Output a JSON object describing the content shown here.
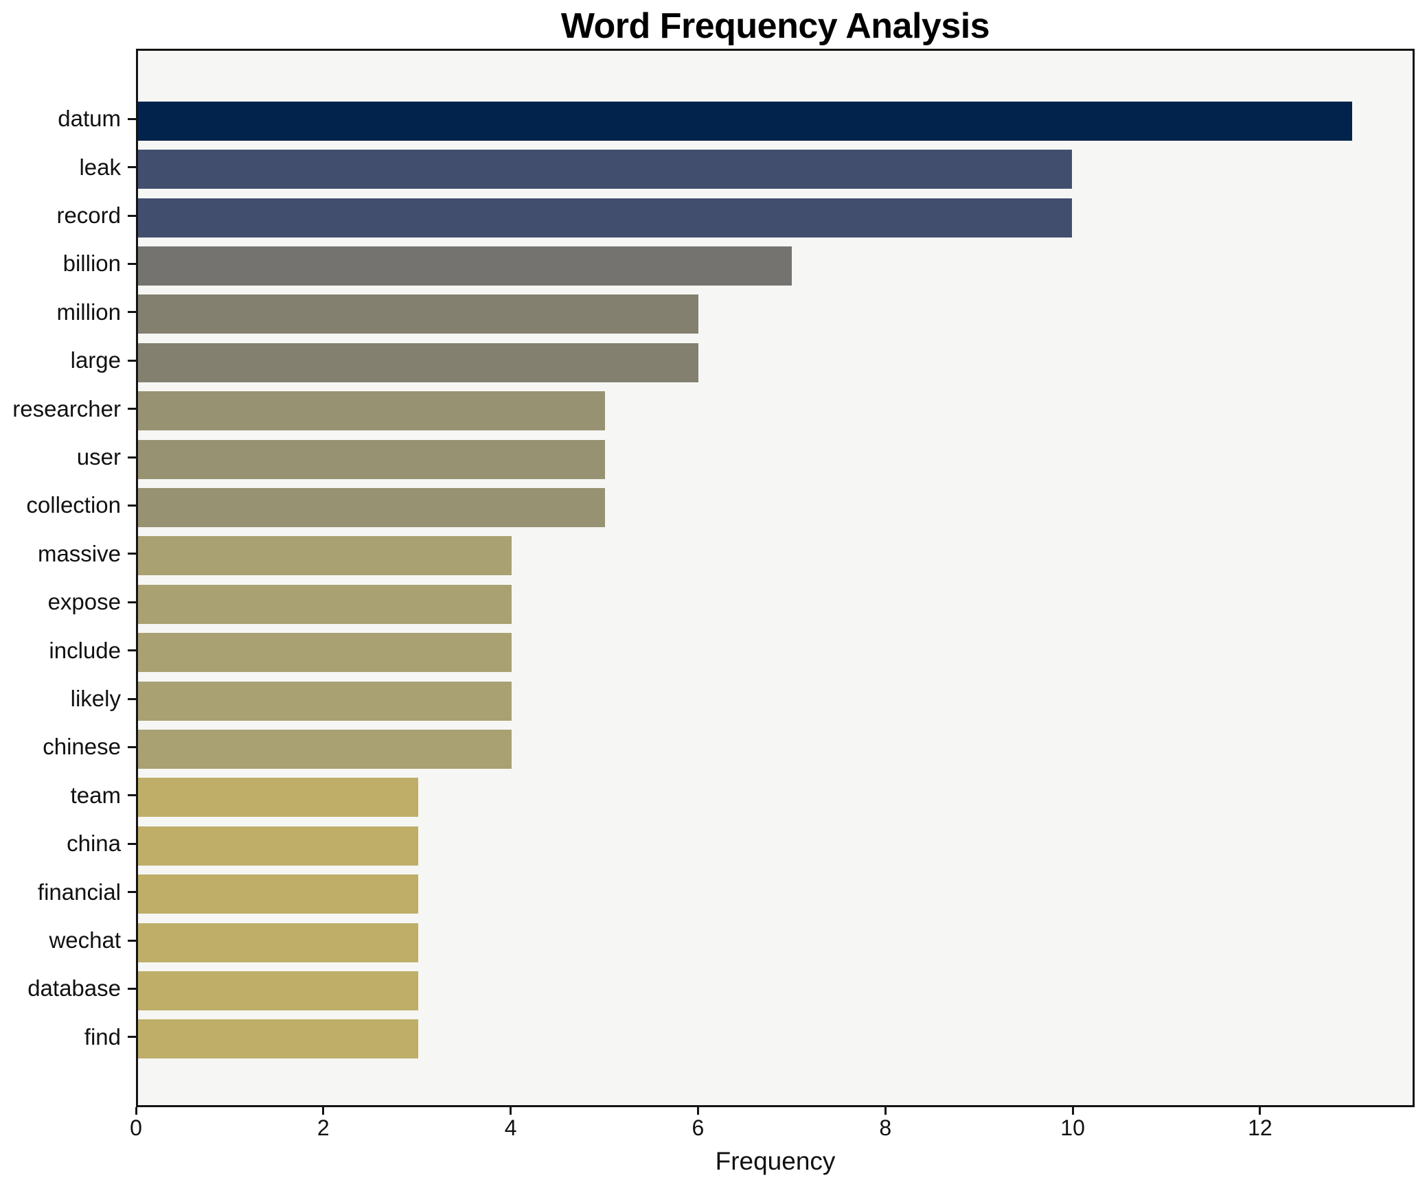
{
  "chart_data": {
    "type": "bar",
    "orientation": "horizontal",
    "title": "Word Frequency Analysis",
    "xlabel": "Frequency",
    "ylabel": "",
    "categories": [
      "datum",
      "leak",
      "record",
      "billion",
      "million",
      "large",
      "researcher",
      "user",
      "collection",
      "massive",
      "expose",
      "include",
      "likely",
      "chinese",
      "team",
      "china",
      "financial",
      "wechat",
      "database",
      "find"
    ],
    "values": [
      13,
      10,
      10,
      7,
      6,
      6,
      5,
      5,
      5,
      4,
      4,
      4,
      4,
      4,
      3,
      3,
      3,
      3,
      3,
      3
    ],
    "bar_colors": [
      "#02234c",
      "#414e6e",
      "#414e6e",
      "#757370",
      "#848070",
      "#848070",
      "#979272",
      "#979272",
      "#979272",
      "#a9a172",
      "#a9a172",
      "#a9a172",
      "#a9a172",
      "#a9a172",
      "#beae68",
      "#beae68",
      "#beae68",
      "#beae68",
      "#beae68",
      "#beae68"
    ],
    "xlim": [
      0,
      13.65
    ],
    "xticks": [
      0,
      2,
      4,
      6,
      8,
      10,
      12
    ],
    "grid": false,
    "legend_position": "none",
    "colors": {
      "figure_background": "#ffffff",
      "axes_background": "#f6f6f4",
      "spine": "#141414",
      "text": "#111111"
    }
  }
}
